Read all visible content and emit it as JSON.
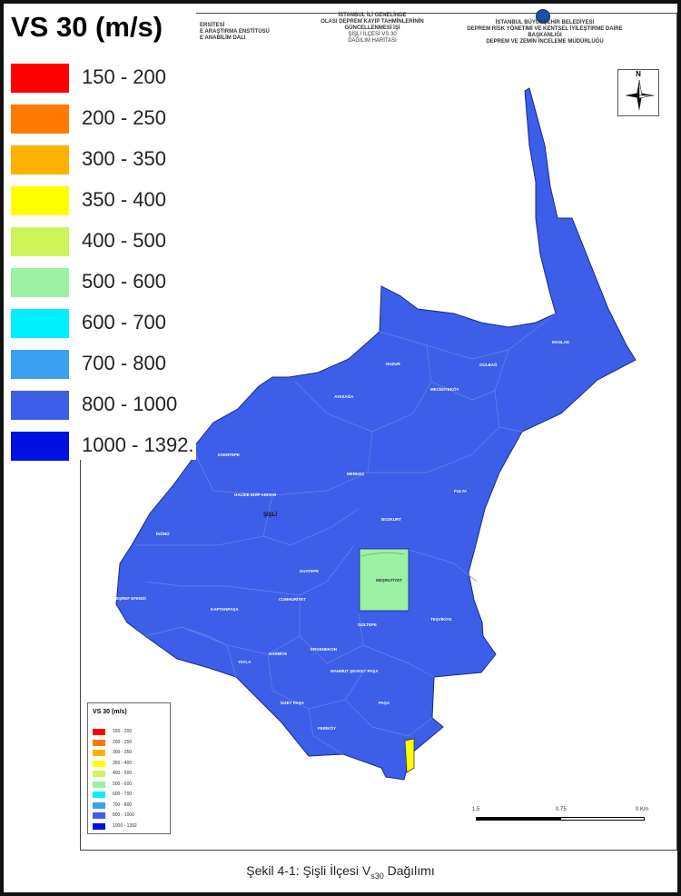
{
  "legend": {
    "title": "VS 30 (m/s)",
    "items": [
      {
        "label": "150 - 200",
        "color": "#ff0000"
      },
      {
        "label": "200 - 250",
        "color": "#ff7a00"
      },
      {
        "label": "300 - 350",
        "color": "#ffb000"
      },
      {
        "label": "350 - 400",
        "color": "#ffff00"
      },
      {
        "label": "400 - 500",
        "color": "#ccf55a"
      },
      {
        "label": "500 - 600",
        "color": "#9cf0a4"
      },
      {
        "label": "600 - 700",
        "color": "#00f0ff"
      },
      {
        "label": "700 - 800",
        "color": "#3aa0f2"
      },
      {
        "label": "800 - 1000",
        "color": "#3c5ee8"
      },
      {
        "label": "1000 - 1392.",
        "color": "#0010e0"
      }
    ]
  },
  "small_legend": {
    "title": "VS 30 (m/s)",
    "items": [
      "150 - 200",
      "200 - 250",
      "300 - 350",
      "350 - 400",
      "400 - 500",
      "500 - 600",
      "600 - 700",
      "700 - 800",
      "800 - 1000",
      "1000 - 1392"
    ]
  },
  "header": {
    "left_line1": "ERSİTESİ",
    "left_line2": "E ARAŞTIRMA ENSTİTÜSÜ",
    "left_line3": "E ANABİLİM DALI",
    "mid_line1": "İSTANBUL İLİ GENELİNDE",
    "mid_line2": "OLASI DEPREM KAYIP TAHMİNLERİNİN",
    "mid_line3": "GÜNCELLENMESİ İŞİ",
    "mid_line4": "ŞİŞLİ İLÇESİ VS 30",
    "mid_line5": "DAĞILIM HARİTASI",
    "right_line1": "İSTANBUL BÜYÜKŞEHİR BELEDİYESİ",
    "right_line2": "DEPREM RİSK YÖNETİMİ VE KENTSEL İYİLEŞTİRME DAİRE BAŞKANLIĞI",
    "right_line3": "DEPREM VE ZEMİN İNCELEME MÜDÜRLÜĞÜ"
  },
  "compass": {
    "north": "N"
  },
  "district_label": "ŞİŞLİ",
  "neighbourhoods": [
    "MASLAK",
    "AYAZAĞA",
    "HUZUR",
    "GÜLBAĞ",
    "MECİDİYEKÖY",
    "ESENTEPE",
    "FULYA",
    "BOZKURT",
    "MERKEZ",
    "HALİDE EDİP ADIVAR",
    "İNÖNÜ",
    "EŞREF EFENDİ",
    "DUATEPE",
    "KAPTANPAŞA",
    "CUMHURİYET",
    "GÜLTEPE",
    "TEŞVİKİYE",
    "HARBİYE",
    "ERGENEKON",
    "YAYLA",
    "MAHMUT ŞEVKET PAŞA",
    "PAŞA",
    "İZZET PAŞA",
    "MEŞRUTİYET",
    "FERİKÖY",
    "KURTULUŞ",
    "BOZKURT"
  ],
  "scale": {
    "t0": "1.5",
    "t1": "0.75",
    "t2": "0 Km"
  },
  "caption": {
    "prefix": "Şekil 4-1: Şişli İlçesi V",
    "sub": "s30",
    "suffix": " Dağılımı"
  }
}
